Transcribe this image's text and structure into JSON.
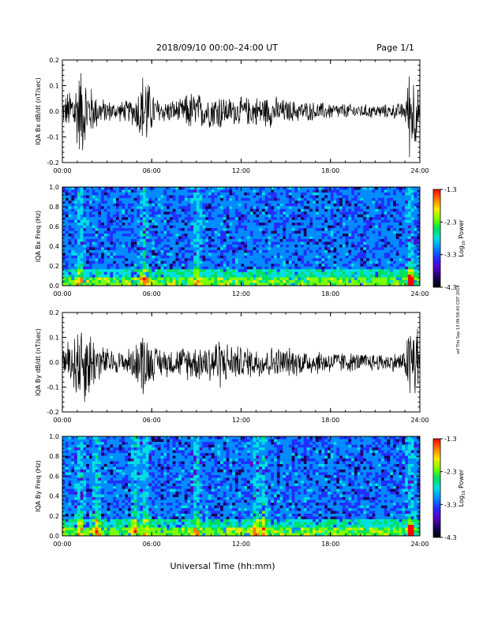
{
  "header": {
    "title": "2018/09/10  00:00–24:00 UT",
    "page": "Page 1/1"
  },
  "footer": {
    "xlabel": "Universal Time (hh:mm)",
    "side_note": "ssf Thu Sep 13 09:58:43 CDT 2018"
  },
  "colorbar": {
    "label": "Log",
    "label_sub": "10",
    "label_rest": " Power",
    "ticks": [
      "-1.3",
      "-2.3",
      "-3.3",
      "-4.3"
    ],
    "colors": [
      "#ff0000",
      "#ff7a00",
      "#ffe600",
      "#7dff00",
      "#00e05a",
      "#00e0e0",
      "#008cff",
      "#2030ff",
      "#5a00c8",
      "#1a0060",
      "#000000"
    ]
  },
  "chart_data": [
    {
      "type": "line",
      "ylabel": "IQA Bx dB/dt (nT/sec)",
      "ylim": [
        -0.2,
        0.2
      ],
      "yticks": [
        "0.2",
        "0.1",
        "0.0",
        "-0.1",
        "-0.2"
      ],
      "xticks": [
        "00:00",
        "06:00",
        "12:00",
        "18:00",
        "24:00"
      ],
      "xlim": [
        0,
        24
      ],
      "activity": [
        [
          0,
          0.05
        ],
        [
          0.3,
          0.08
        ],
        [
          0.8,
          0.14
        ],
        [
          1.3,
          0.2
        ],
        [
          1.8,
          0.12
        ],
        [
          2.5,
          0.06
        ],
        [
          3.5,
          0.04
        ],
        [
          4.5,
          0.05
        ],
        [
          5.0,
          0.08
        ],
        [
          5.3,
          0.16
        ],
        [
          5.6,
          0.2
        ],
        [
          5.9,
          0.1
        ],
        [
          6.5,
          0.05
        ],
        [
          8.0,
          0.05
        ],
        [
          8.5,
          0.09
        ],
        [
          9.0,
          0.08
        ],
        [
          10.0,
          0.07
        ],
        [
          10.5,
          0.09
        ],
        [
          11.0,
          0.06
        ],
        [
          12.0,
          0.06
        ],
        [
          14.0,
          0.07
        ],
        [
          15.0,
          0.05
        ],
        [
          17.0,
          0.04
        ],
        [
          20.0,
          0.03
        ],
        [
          22.0,
          0.03
        ],
        [
          23.0,
          0.04
        ],
        [
          23.3,
          0.2
        ],
        [
          23.6,
          0.2
        ],
        [
          24.0,
          0.05
        ]
      ]
    },
    {
      "type": "heatmap",
      "ylabel": "IQA Bx Freq (Hz)",
      "ylim": [
        0.0,
        1.0
      ],
      "yticks": [
        "1.0",
        "0.8",
        "0.6",
        "0.4",
        "0.2",
        "0.0"
      ],
      "xticks": [
        "00:00",
        "06:00",
        "12:00",
        "18:00",
        "24:00"
      ],
      "xlim": [
        0,
        24
      ],
      "zlim": [
        -4.3,
        -1.3
      ],
      "bright_times": [
        1.2,
        5.5,
        9.0,
        23.4
      ]
    },
    {
      "type": "line",
      "ylabel": "IQA By dB/dt (nT/sec)",
      "ylim": [
        -0.2,
        0.2
      ],
      "yticks": [
        "0.2",
        "0.1",
        "0.0",
        "-0.1",
        "-0.2"
      ],
      "xticks": [
        "00:00",
        "06:00",
        "12:00",
        "18:00",
        "24:00"
      ],
      "xlim": [
        0,
        24
      ],
      "activity": [
        [
          0,
          0.06
        ],
        [
          0.4,
          0.1
        ],
        [
          0.9,
          0.16
        ],
        [
          1.3,
          0.2
        ],
        [
          1.8,
          0.16
        ],
        [
          2.5,
          0.08
        ],
        [
          3.5,
          0.05
        ],
        [
          4.5,
          0.06
        ],
        [
          5.0,
          0.09
        ],
        [
          5.4,
          0.16
        ],
        [
          5.7,
          0.12
        ],
        [
          6.2,
          0.07
        ],
        [
          7.5,
          0.06
        ],
        [
          8.5,
          0.08
        ],
        [
          9.5,
          0.08
        ],
        [
          10.5,
          0.12
        ],
        [
          11.0,
          0.09
        ],
        [
          12.0,
          0.07
        ],
        [
          14.0,
          0.07
        ],
        [
          16.0,
          0.06
        ],
        [
          18.0,
          0.05
        ],
        [
          20.0,
          0.04
        ],
        [
          22.0,
          0.04
        ],
        [
          23.0,
          0.05
        ],
        [
          23.3,
          0.2
        ],
        [
          23.8,
          0.2
        ],
        [
          24.0,
          0.06
        ]
      ]
    },
    {
      "type": "heatmap",
      "ylabel": "IQA By Freq (Hz)",
      "ylim": [
        0.0,
        1.0
      ],
      "yticks": [
        "1.0",
        "0.8",
        "0.6",
        "0.4",
        "0.2",
        "0.0"
      ],
      "xticks": [
        "00:00",
        "06:00",
        "12:00",
        "18:00",
        "24:00"
      ],
      "xlim": [
        0,
        24
      ],
      "zlim": [
        -4.3,
        -1.3
      ],
      "bright_times": [
        1.2,
        2.3,
        4.9,
        5.6,
        9.0,
        13.0,
        13.5,
        23.4
      ]
    }
  ]
}
